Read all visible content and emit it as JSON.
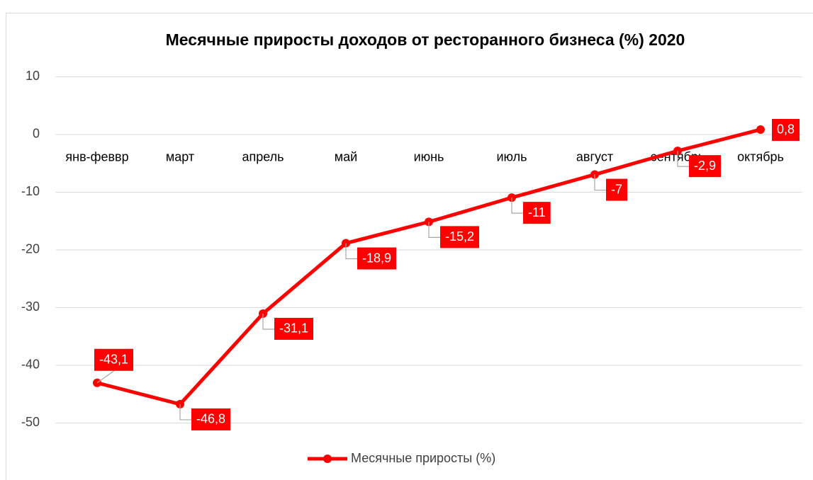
{
  "chart_data": {
    "type": "line",
    "title": "Месячные приросты доходов от ресторанного бизнеса (%) 2020",
    "categories": [
      "янв-феввр",
      "март",
      "апрель",
      "май",
      "июнь",
      "июль",
      "август",
      "сентябрь",
      "октябрь"
    ],
    "series": [
      {
        "name": "Месячные приросты (%)",
        "color": "#ff0000",
        "values": [
          -43.1,
          -46.8,
          -31.1,
          -18.9,
          -15.2,
          -11,
          -7,
          -2.9,
          0.8
        ],
        "value_labels": [
          "-43,1",
          "-46,8",
          "-31,1",
          "-18,9",
          "-15,2",
          "-11",
          "-7",
          "-2,9",
          "0,8"
        ]
      }
    ],
    "ylim": [
      -50,
      10
    ],
    "yticks": [
      -50,
      -40,
      -30,
      -20,
      -10,
      0,
      10
    ],
    "grid": true,
    "legend": "bottom"
  }
}
